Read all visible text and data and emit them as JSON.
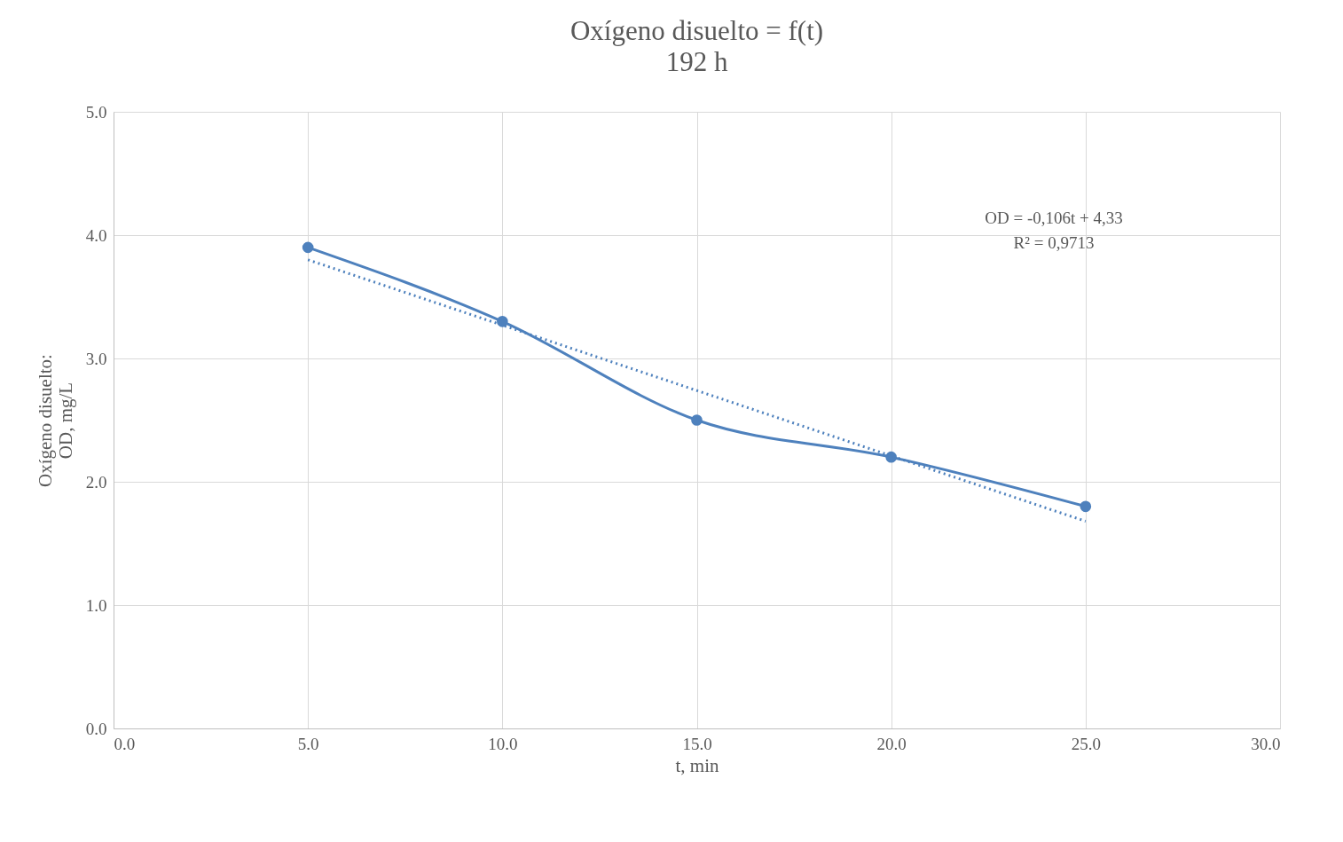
{
  "chart_data": {
    "type": "line",
    "title": "Oxígeno disuelto = f(t)",
    "subtitle": "192 h",
    "xlabel": "t, min",
    "ylabel": "Oxígeno disuelto:\nOD, mg/L",
    "x": [
      5,
      10,
      15,
      20,
      25
    ],
    "series": [
      {
        "color": "#4e81bd",
        "values": [
          3.9,
          3.3,
          2.5,
          2.2,
          1.8
        ],
        "marker": "circle",
        "line_style": "solid"
      },
      {
        "type": "line",
        "color": "#4e81bd",
        "x": [
          5,
          25
        ],
        "values": [
          3.8,
          1.68
        ],
        "marker": "none",
        "line_style": "dotted"
      }
    ],
    "annotations": [
      "OD = -0,106t + 4,33",
      "R² = 0,9713"
    ],
    "xlim": [
      0,
      30
    ],
    "ylim": [
      0,
      5
    ],
    "xticks": [
      {
        "value": 0,
        "label": "0.0"
      },
      {
        "value": 5,
        "label": "5.0"
      },
      {
        "value": 10,
        "label": "10.0"
      },
      {
        "value": 15,
        "label": "15.0"
      },
      {
        "value": 20,
        "label": "20.0"
      },
      {
        "value": 25,
        "label": "25.0"
      },
      {
        "value": 30,
        "label": "30.0"
      }
    ],
    "yticks": [
      {
        "value": 0,
        "label": "0.0"
      },
      {
        "value": 1,
        "label": "1.0"
      },
      {
        "value": 2,
        "label": "2.0"
      },
      {
        "value": 3,
        "label": "3.0"
      },
      {
        "value": 4,
        "label": "4.0"
      },
      {
        "value": 5,
        "label": "5.0"
      }
    ],
    "grid": true
  }
}
